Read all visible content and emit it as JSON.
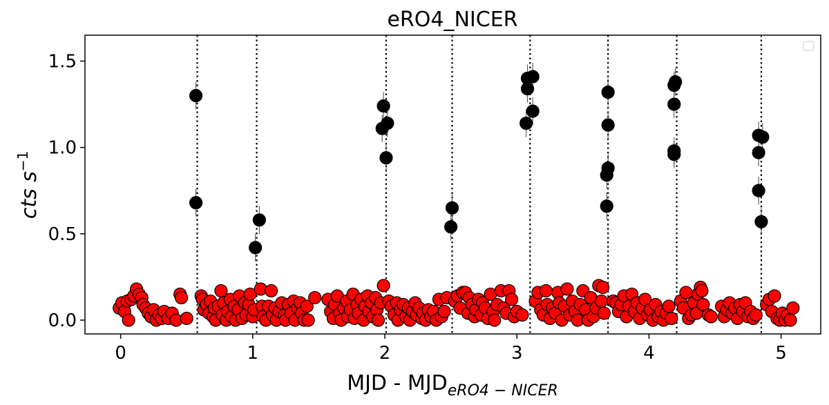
{
  "chart_data": {
    "type": "scatter",
    "title": "eRO4_NICER",
    "xlabel_main": "MJD - MJD",
    "xlabel_sub": "eRO4 − NICER",
    "ylabel_main": "cts s",
    "ylabel_sup": "−1",
    "xlim": [
      -0.27,
      5.3
    ],
    "ylim": [
      -0.08,
      1.65
    ],
    "xticks": [
      0,
      1,
      2,
      3,
      4,
      5
    ],
    "yticks": [
      0.0,
      0.5,
      1.0,
      1.5
    ],
    "xtick_labels": [
      "0",
      "1",
      "2",
      "3",
      "4",
      "5"
    ],
    "ytick_labels": [
      "0.0",
      "0.5",
      "1.0",
      "1.5"
    ],
    "grid": false,
    "legend": "upper-right, empty",
    "vlines_x": [
      0.58,
      1.03,
      2.01,
      2.51,
      3.1,
      3.69,
      4.21,
      4.85
    ],
    "series": [
      {
        "color": "#000000",
        "points": [
          [
            0.57,
            1.3
          ],
          [
            0.57,
            0.68
          ],
          [
            1.02,
            0.42
          ],
          [
            1.05,
            0.58
          ],
          [
            1.99,
            1.24
          ],
          [
            1.98,
            1.11
          ],
          [
            2.02,
            1.14
          ],
          [
            2.01,
            0.94
          ],
          [
            2.51,
            0.65
          ],
          [
            2.5,
            0.54
          ],
          [
            3.08,
            1.4
          ],
          [
            3.08,
            1.34
          ],
          [
            3.12,
            1.41
          ],
          [
            3.07,
            1.14
          ],
          [
            3.12,
            1.21
          ],
          [
            3.69,
            1.32
          ],
          [
            3.69,
            1.13
          ],
          [
            3.69,
            0.88
          ],
          [
            3.68,
            0.84
          ],
          [
            3.68,
            0.66
          ],
          [
            4.2,
            1.38
          ],
          [
            4.19,
            1.36
          ],
          [
            4.19,
            1.25
          ],
          [
            4.19,
            0.98
          ],
          [
            4.19,
            0.96
          ],
          [
            4.83,
            1.07
          ],
          [
            4.86,
            1.06
          ],
          [
            4.83,
            0.97
          ],
          [
            4.83,
            0.75
          ],
          [
            4.85,
            0.57
          ]
        ]
      },
      {
        "color": "#ff0000",
        "points": [
          [
            -0.01,
            0.07
          ],
          [
            0.01,
            0.1
          ],
          [
            0.03,
            0.05
          ],
          [
            0.05,
            0.11
          ],
          [
            0.06,
            0.0
          ],
          [
            0.08,
            0.12
          ],
          [
            0.1,
            0.14
          ],
          [
            0.12,
            0.18
          ],
          [
            0.14,
            0.15
          ],
          [
            0.16,
            0.13
          ],
          [
            0.17,
            0.09
          ],
          [
            0.19,
            0.07
          ],
          [
            0.21,
            0.04
          ],
          [
            0.23,
            0.02
          ],
          [
            0.25,
            0.06
          ],
          [
            0.27,
            0.0
          ],
          [
            0.29,
            0.03
          ],
          [
            0.31,
            0.01
          ],
          [
            0.33,
            0.05
          ],
          [
            0.36,
            0.01
          ],
          [
            0.39,
            0.04
          ],
          [
            0.42,
            0.0
          ],
          [
            0.45,
            0.15
          ],
          [
            0.46,
            0.13
          ],
          [
            0.5,
            0.01
          ],
          [
            0.61,
            0.14
          ],
          [
            0.62,
            0.12
          ],
          [
            0.63,
            0.06
          ],
          [
            0.65,
            0.09
          ],
          [
            0.67,
            0.04
          ],
          [
            0.68,
            0.11
          ],
          [
            0.7,
            0.02
          ],
          [
            0.71,
            0.07
          ],
          [
            0.72,
            0.0
          ],
          [
            0.74,
            0.08
          ],
          [
            0.76,
            0.17
          ],
          [
            0.77,
            0.03
          ],
          [
            0.78,
            0.1
          ],
          [
            0.8,
            0.0
          ],
          [
            0.81,
            0.05
          ],
          [
            0.83,
            0.12
          ],
          [
            0.84,
            0.02
          ],
          [
            0.86,
            0.08
          ],
          [
            0.87,
            0.0
          ],
          [
            0.89,
            0.06
          ],
          [
            0.9,
            0.14
          ],
          [
            0.92,
            0.01
          ],
          [
            0.94,
            0.1
          ],
          [
            0.95,
            0.03
          ],
          [
            0.97,
            0.09
          ],
          [
            0.98,
            0.15
          ],
          [
            1.0,
            0.02
          ],
          [
            1.01,
            0.06
          ],
          [
            1.06,
            0.18
          ],
          [
            1.07,
            0.08
          ],
          [
            1.08,
            0.02
          ],
          [
            1.1,
            0.0
          ],
          [
            1.12,
            0.08
          ],
          [
            1.14,
            0.17
          ],
          [
            1.15,
            0.03
          ],
          [
            1.17,
            0.07
          ],
          [
            1.18,
            0.0
          ],
          [
            1.2,
            0.05
          ],
          [
            1.22,
            0.1
          ],
          [
            1.24,
            0.03
          ],
          [
            1.25,
            0.0
          ],
          [
            1.27,
            0.09
          ],
          [
            1.29,
            0.04
          ],
          [
            1.31,
            0.11
          ],
          [
            1.32,
            0.0
          ],
          [
            1.34,
            0.07
          ],
          [
            1.36,
            0.1
          ],
          [
            1.37,
            0.04
          ],
          [
            1.39,
            0.0
          ],
          [
            1.41,
            0.08
          ],
          [
            1.42,
            0.0
          ],
          [
            1.47,
            0.13
          ],
          [
            1.57,
            0.12
          ],
          [
            1.59,
            0.05
          ],
          [
            1.61,
            0.01
          ],
          [
            1.62,
            0.09
          ],
          [
            1.64,
            0.14
          ],
          [
            1.66,
            0.04
          ],
          [
            1.67,
            0.0
          ],
          [
            1.69,
            0.07
          ],
          [
            1.71,
            0.11
          ],
          [
            1.72,
            0.02
          ],
          [
            1.74,
            0.06
          ],
          [
            1.76,
            0.15
          ],
          [
            1.77,
            0.01
          ],
          [
            1.79,
            0.09
          ],
          [
            1.8,
            0.04
          ],
          [
            1.82,
            0.12
          ],
          [
            1.84,
            0.0
          ],
          [
            1.85,
            0.08
          ],
          [
            1.87,
            0.14
          ],
          [
            1.88,
            0.05
          ],
          [
            1.9,
            0.1
          ],
          [
            1.91,
            0.02
          ],
          [
            1.93,
            0.13
          ],
          [
            1.94,
            0.06
          ],
          [
            1.95,
            0.0
          ],
          [
            1.97,
            0.1
          ],
          [
            1.99,
            0.2
          ],
          [
            2.03,
            0.11
          ],
          [
            2.05,
            0.08
          ],
          [
            2.07,
            0.03
          ],
          [
            2.09,
            0.1
          ],
          [
            2.1,
            0.0
          ],
          [
            2.12,
            0.06
          ],
          [
            2.14,
            0.09
          ],
          [
            2.16,
            0.02
          ],
          [
            2.18,
            0.07
          ],
          [
            2.19,
            0.0
          ],
          [
            2.21,
            0.05
          ],
          [
            2.23,
            0.1
          ],
          [
            2.24,
            0.03
          ],
          [
            2.26,
            0.07
          ],
          [
            2.28,
            0.01
          ],
          [
            2.29,
            0.04
          ],
          [
            2.31,
            0.0
          ],
          [
            2.33,
            0.06
          ],
          [
            2.35,
            0.02
          ],
          [
            2.37,
            0.05
          ],
          [
            2.39,
            0.0
          ],
          [
            2.41,
            0.12
          ],
          [
            2.43,
            0.02
          ],
          [
            2.45,
            0.05
          ],
          [
            2.47,
            0.13
          ],
          [
            2.53,
            0.11
          ],
          [
            2.55,
            0.14
          ],
          [
            2.57,
            0.07
          ],
          [
            2.59,
            0.16
          ],
          [
            2.61,
            0.16
          ],
          [
            2.63,
            0.04
          ],
          [
            2.64,
            0.13
          ],
          [
            2.66,
            0.09
          ],
          [
            2.68,
            0.02
          ],
          [
            2.69,
            0.06
          ],
          [
            2.71,
            0.12
          ],
          [
            2.73,
            0.03
          ],
          [
            2.74,
            0.1
          ],
          [
            2.76,
            0.07
          ],
          [
            2.78,
            0.01
          ],
          [
            2.8,
            0.15
          ],
          [
            2.82,
            0.05
          ],
          [
            2.83,
            0.0
          ],
          [
            2.85,
            0.09
          ],
          [
            2.88,
            0.17
          ],
          [
            2.9,
            0.07
          ],
          [
            2.92,
            0.04
          ],
          [
            2.94,
            0.17
          ],
          [
            2.96,
            0.12
          ],
          [
            2.98,
            0.02
          ],
          [
            3.0,
            0.05
          ],
          [
            3.04,
            0.03
          ],
          [
            3.14,
            0.11
          ],
          [
            3.16,
            0.16
          ],
          [
            3.18,
            0.06
          ],
          [
            3.2,
            0.03
          ],
          [
            3.22,
            0.17
          ],
          [
            3.23,
            0.09
          ],
          [
            3.25,
            0.01
          ],
          [
            3.27,
            0.07
          ],
          [
            3.29,
            0.04
          ],
          [
            3.31,
            0.16
          ],
          [
            3.32,
            0.1
          ],
          [
            3.34,
            0.0
          ],
          [
            3.36,
            0.08
          ],
          [
            3.38,
            0.18
          ],
          [
            3.4,
            0.03
          ],
          [
            3.42,
            0.11
          ],
          [
            3.44,
            0.05
          ],
          [
            3.46,
            0.0
          ],
          [
            3.48,
            0.09
          ],
          [
            3.5,
            0.17
          ],
          [
            3.52,
            0.06
          ],
          [
            3.54,
            0.0
          ],
          [
            3.56,
            0.13
          ],
          [
            3.58,
            0.02
          ],
          [
            3.6,
            0.07
          ],
          [
            3.62,
            0.2
          ],
          [
            3.64,
            0.11
          ],
          [
            3.65,
            0.19
          ],
          [
            3.66,
            0.04
          ],
          [
            3.73,
            0.11
          ],
          [
            3.75,
            0.1
          ],
          [
            3.77,
            0.05
          ],
          [
            3.79,
            0.09
          ],
          [
            3.81,
            0.14
          ],
          [
            3.83,
            0.02
          ],
          [
            3.85,
            0.08
          ],
          [
            3.87,
            0.15
          ],
          [
            3.89,
            0.05
          ],
          [
            3.91,
            0.1
          ],
          [
            3.93,
            0.01
          ],
          [
            3.95,
            0.07
          ],
          [
            3.97,
            0.12
          ],
          [
            3.99,
            0.03
          ],
          [
            4.01,
            0.06
          ],
          [
            4.03,
            0.0
          ],
          [
            4.05,
            0.09
          ],
          [
            4.07,
            0.02
          ],
          [
            4.09,
            0.05
          ],
          [
            4.11,
            0.0
          ],
          [
            4.13,
            0.04
          ],
          [
            4.15,
            0.08
          ],
          [
            4.17,
            0.01
          ],
          [
            4.24,
            0.11
          ],
          [
            4.26,
            0.07
          ],
          [
            4.28,
            0.16
          ],
          [
            4.3,
            0.01
          ],
          [
            4.32,
            0.03
          ],
          [
            4.34,
            0.1
          ],
          [
            4.36,
            0.04
          ],
          [
            4.37,
            0.15
          ],
          [
            4.39,
            0.19
          ],
          [
            4.4,
            0.17
          ],
          [
            4.41,
            0.09
          ],
          [
            4.45,
            0.03
          ],
          [
            4.47,
            0.02
          ],
          [
            4.55,
            0.08
          ],
          [
            4.57,
            0.02
          ],
          [
            4.59,
            0.06
          ],
          [
            4.61,
            0.1
          ],
          [
            4.63,
            0.04
          ],
          [
            4.65,
            0.07
          ],
          [
            4.67,
            0.01
          ],
          [
            4.69,
            0.09
          ],
          [
            4.71,
            0.05
          ],
          [
            4.73,
            0.1
          ],
          [
            4.75,
            0.02
          ],
          [
            4.77,
            0.05
          ],
          [
            4.79,
            0.01
          ],
          [
            4.81,
            0.03
          ],
          [
            4.89,
            0.09
          ],
          [
            4.91,
            0.12
          ],
          [
            4.93,
            0.05
          ],
          [
            4.95,
            0.14
          ],
          [
            4.97,
            0.01
          ],
          [
            4.99,
            0.0
          ],
          [
            5.01,
            0.04
          ],
          [
            5.03,
            0.0
          ],
          [
            5.05,
            0.03
          ],
          [
            5.07,
            0.0
          ],
          [
            5.09,
            0.07
          ]
        ]
      }
    ]
  }
}
